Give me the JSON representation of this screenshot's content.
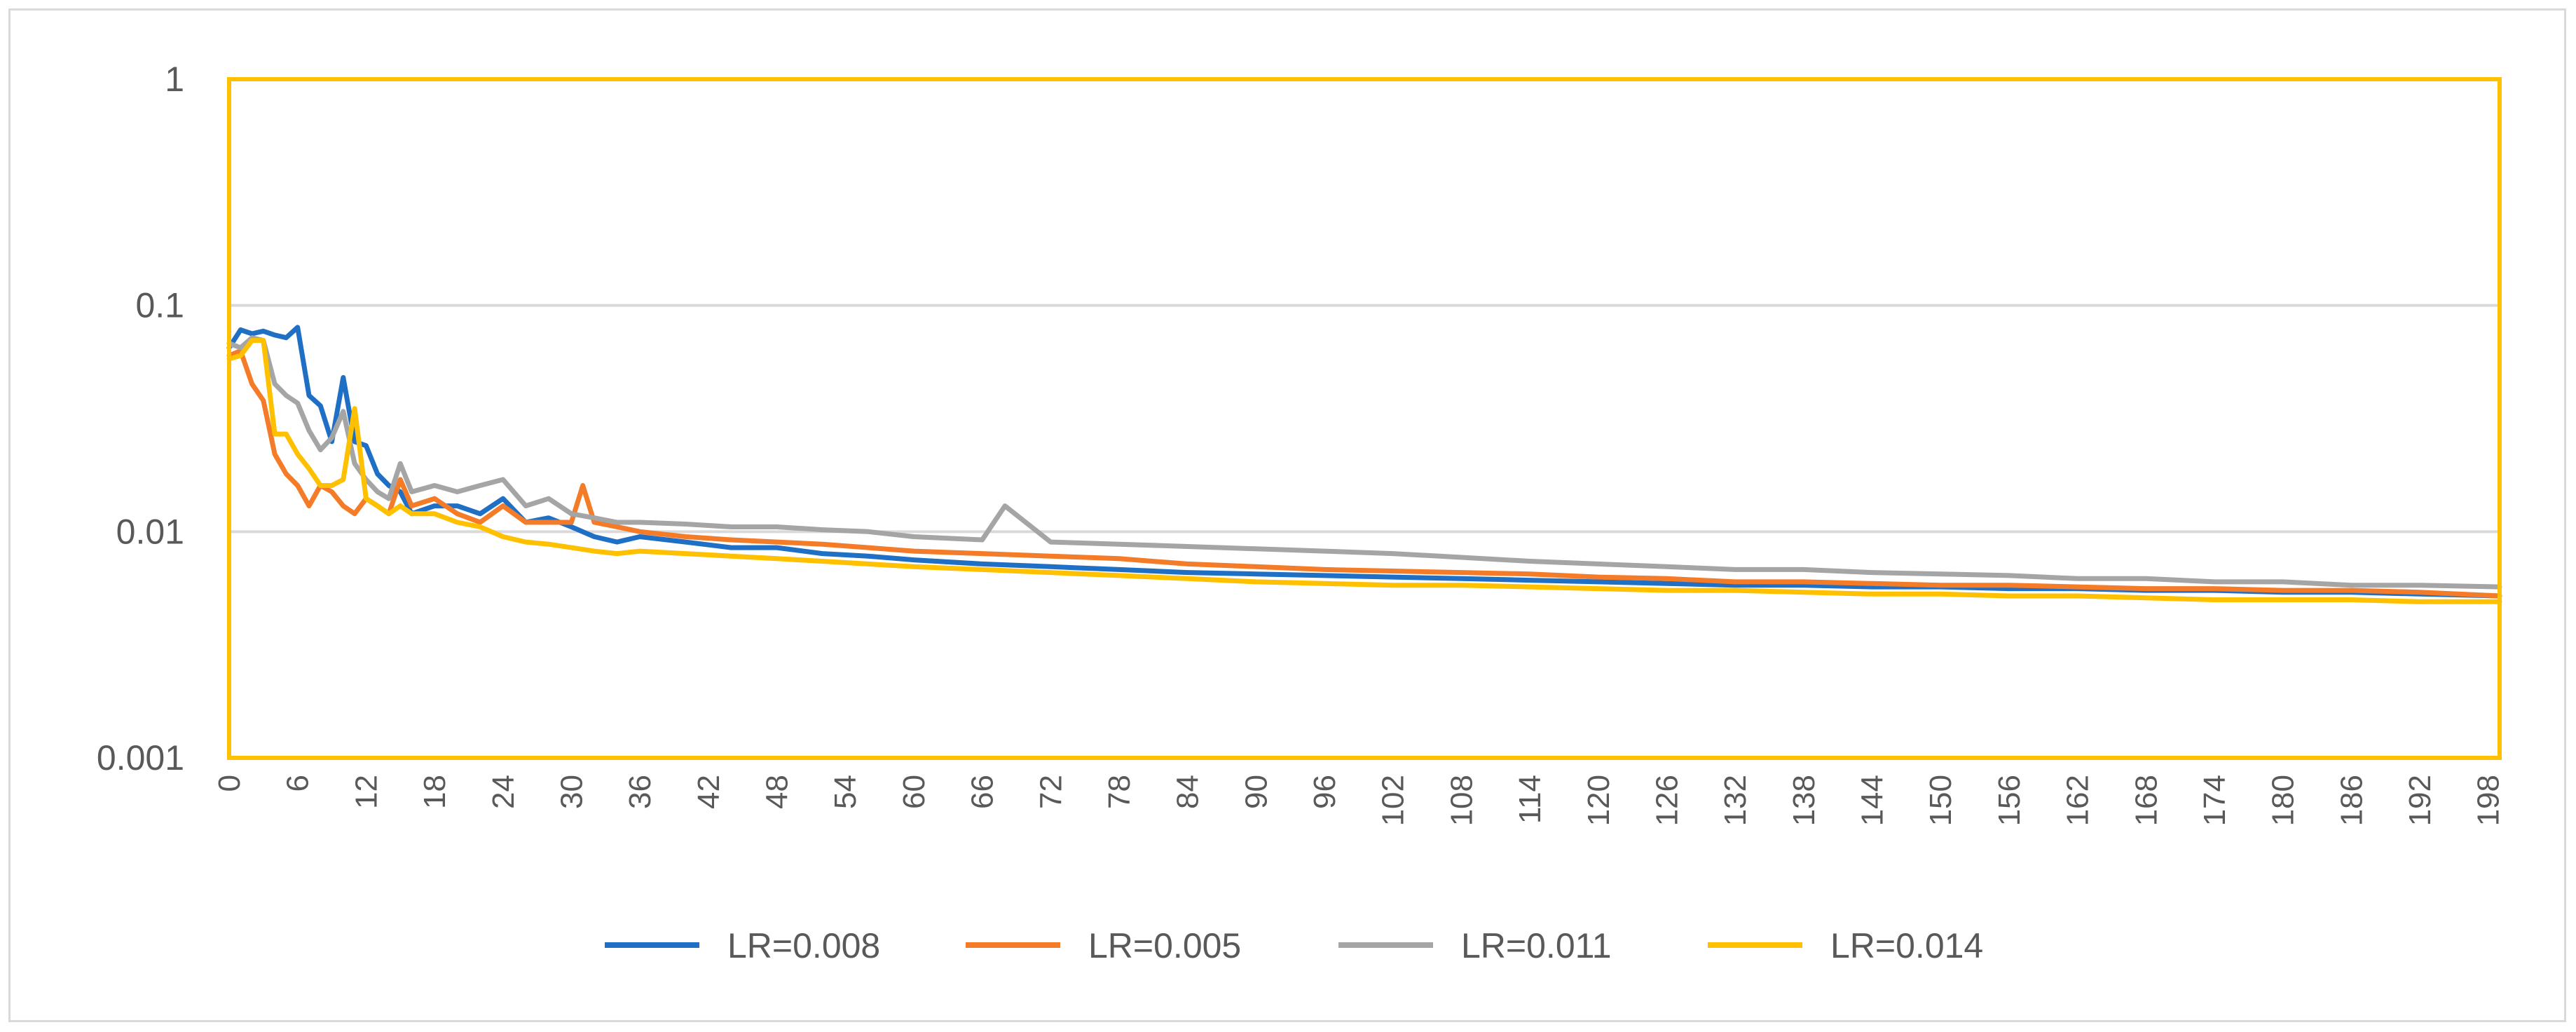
{
  "chart_data": {
    "type": "line",
    "title": "",
    "xlabel": "",
    "ylabel": "",
    "y_scale": "log",
    "ylim": [
      0.001,
      1
    ],
    "y_ticks": [
      "1",
      "0.1",
      "0.01",
      "0.001"
    ],
    "x_ticks": [
      "0",
      "6",
      "12",
      "18",
      "24",
      "30",
      "36",
      "42",
      "48",
      "54",
      "60",
      "66",
      "72",
      "78",
      "84",
      "90",
      "96",
      "102",
      "108",
      "114",
      "120",
      "126",
      "132",
      "138",
      "144",
      "150",
      "156",
      "162",
      "168",
      "174",
      "180",
      "186",
      "192",
      "198"
    ],
    "xlim": [
      0,
      199
    ],
    "grid": true,
    "legend_position": "bottom",
    "plot_border_color": "#FFC000",
    "gridline_color": "#d9d9d9",
    "series": [
      {
        "name": "LR=0.008",
        "color": "#1F6FC5",
        "x": [
          0,
          1,
          2,
          3,
          4,
          5,
          6,
          7,
          8,
          9,
          10,
          11,
          12,
          13,
          14,
          15,
          16,
          18,
          20,
          22,
          24,
          26,
          28,
          30,
          32,
          34,
          36,
          40,
          44,
          48,
          52,
          56,
          60,
          66,
          72,
          78,
          84,
          90,
          96,
          102,
          108,
          114,
          120,
          126,
          132,
          138,
          144,
          150,
          156,
          162,
          168,
          174,
          180,
          186,
          192,
          199
        ],
        "y": [
          0.065,
          0.078,
          0.075,
          0.077,
          0.074,
          0.072,
          0.08,
          0.04,
          0.036,
          0.025,
          0.048,
          0.025,
          0.024,
          0.018,
          0.016,
          0.015,
          0.012,
          0.013,
          0.013,
          0.012,
          0.014,
          0.011,
          0.0115,
          0.0105,
          0.0095,
          0.009,
          0.0095,
          0.009,
          0.0085,
          0.0085,
          0.008,
          0.0078,
          0.0075,
          0.0072,
          0.007,
          0.0068,
          0.0066,
          0.0065,
          0.0064,
          0.0063,
          0.0062,
          0.0061,
          0.006,
          0.0059,
          0.0058,
          0.0058,
          0.0057,
          0.0057,
          0.0056,
          0.0056,
          0.0055,
          0.0055,
          0.0054,
          0.0054,
          0.0053,
          0.0052
        ]
      },
      {
        "name": "LR=0.005",
        "color": "#F47B28",
        "x": [
          0,
          1,
          2,
          3,
          4,
          5,
          6,
          7,
          8,
          9,
          10,
          11,
          12,
          13,
          14,
          15,
          16,
          18,
          20,
          22,
          24,
          26,
          28,
          30,
          31,
          32,
          34,
          36,
          40,
          44,
          48,
          52,
          56,
          60,
          66,
          72,
          78,
          84,
          90,
          96,
          102,
          108,
          114,
          120,
          126,
          132,
          138,
          144,
          150,
          156,
          162,
          168,
          174,
          180,
          186,
          192,
          199
        ],
        "y": [
          0.06,
          0.063,
          0.045,
          0.038,
          0.022,
          0.018,
          0.016,
          0.013,
          0.016,
          0.015,
          0.013,
          0.012,
          0.014,
          0.013,
          0.012,
          0.017,
          0.013,
          0.014,
          0.012,
          0.011,
          0.013,
          0.011,
          0.011,
          0.011,
          0.016,
          0.011,
          0.0105,
          0.01,
          0.0095,
          0.0092,
          0.009,
          0.0088,
          0.0085,
          0.0082,
          0.008,
          0.0078,
          0.0076,
          0.0072,
          0.007,
          0.0068,
          0.0067,
          0.0066,
          0.0065,
          0.0063,
          0.0062,
          0.006,
          0.006,
          0.0059,
          0.0058,
          0.0058,
          0.0057,
          0.0056,
          0.0056,
          0.0055,
          0.0055,
          0.0054,
          0.0052
        ]
      },
      {
        "name": "LR=0.011",
        "color": "#A5A5A5",
        "x": [
          0,
          1,
          2,
          3,
          4,
          5,
          6,
          7,
          8,
          9,
          10,
          11,
          12,
          13,
          14,
          15,
          16,
          18,
          20,
          22,
          24,
          26,
          28,
          30,
          32,
          34,
          36,
          40,
          44,
          48,
          52,
          56,
          60,
          66,
          68,
          72,
          78,
          84,
          90,
          96,
          102,
          108,
          114,
          120,
          126,
          132,
          138,
          144,
          150,
          156,
          162,
          168,
          174,
          180,
          186,
          192,
          199
        ],
        "y": [
          0.068,
          0.065,
          0.072,
          0.07,
          0.045,
          0.04,
          0.037,
          0.028,
          0.023,
          0.026,
          0.034,
          0.02,
          0.017,
          0.015,
          0.014,
          0.02,
          0.015,
          0.016,
          0.015,
          0.016,
          0.017,
          0.013,
          0.014,
          0.012,
          0.0115,
          0.011,
          0.011,
          0.0108,
          0.0105,
          0.0105,
          0.0102,
          0.01,
          0.0095,
          0.0092,
          0.013,
          0.009,
          0.0088,
          0.0086,
          0.0084,
          0.0082,
          0.008,
          0.0077,
          0.0074,
          0.0072,
          0.007,
          0.0068,
          0.0068,
          0.0066,
          0.0065,
          0.0064,
          0.0062,
          0.0062,
          0.006,
          0.006,
          0.0058,
          0.0058,
          0.0057
        ]
      },
      {
        "name": "LR=0.014",
        "color": "#FFC000",
        "x": [
          0,
          1,
          2,
          3,
          4,
          5,
          6,
          7,
          8,
          9,
          10,
          11,
          12,
          13,
          14,
          15,
          16,
          18,
          20,
          22,
          24,
          26,
          28,
          30,
          32,
          34,
          36,
          40,
          44,
          48,
          52,
          56,
          60,
          66,
          72,
          78,
          84,
          90,
          96,
          102,
          108,
          114,
          120,
          126,
          132,
          138,
          144,
          150,
          156,
          162,
          168,
          174,
          180,
          186,
          192,
          199
        ],
        "y": [
          0.058,
          0.06,
          0.07,
          0.07,
          0.027,
          0.027,
          0.022,
          0.019,
          0.016,
          0.016,
          0.017,
          0.035,
          0.014,
          0.013,
          0.012,
          0.013,
          0.012,
          0.012,
          0.011,
          0.0105,
          0.0095,
          0.009,
          0.0088,
          0.0085,
          0.0082,
          0.008,
          0.0082,
          0.008,
          0.0078,
          0.0076,
          0.0074,
          0.0072,
          0.007,
          0.0068,
          0.0066,
          0.0064,
          0.0062,
          0.006,
          0.0059,
          0.0058,
          0.0058,
          0.0057,
          0.0056,
          0.0055,
          0.0055,
          0.0054,
          0.0053,
          0.0053,
          0.0052,
          0.0052,
          0.0051,
          0.005,
          0.005,
          0.005,
          0.0049,
          0.0049
        ]
      }
    ]
  }
}
